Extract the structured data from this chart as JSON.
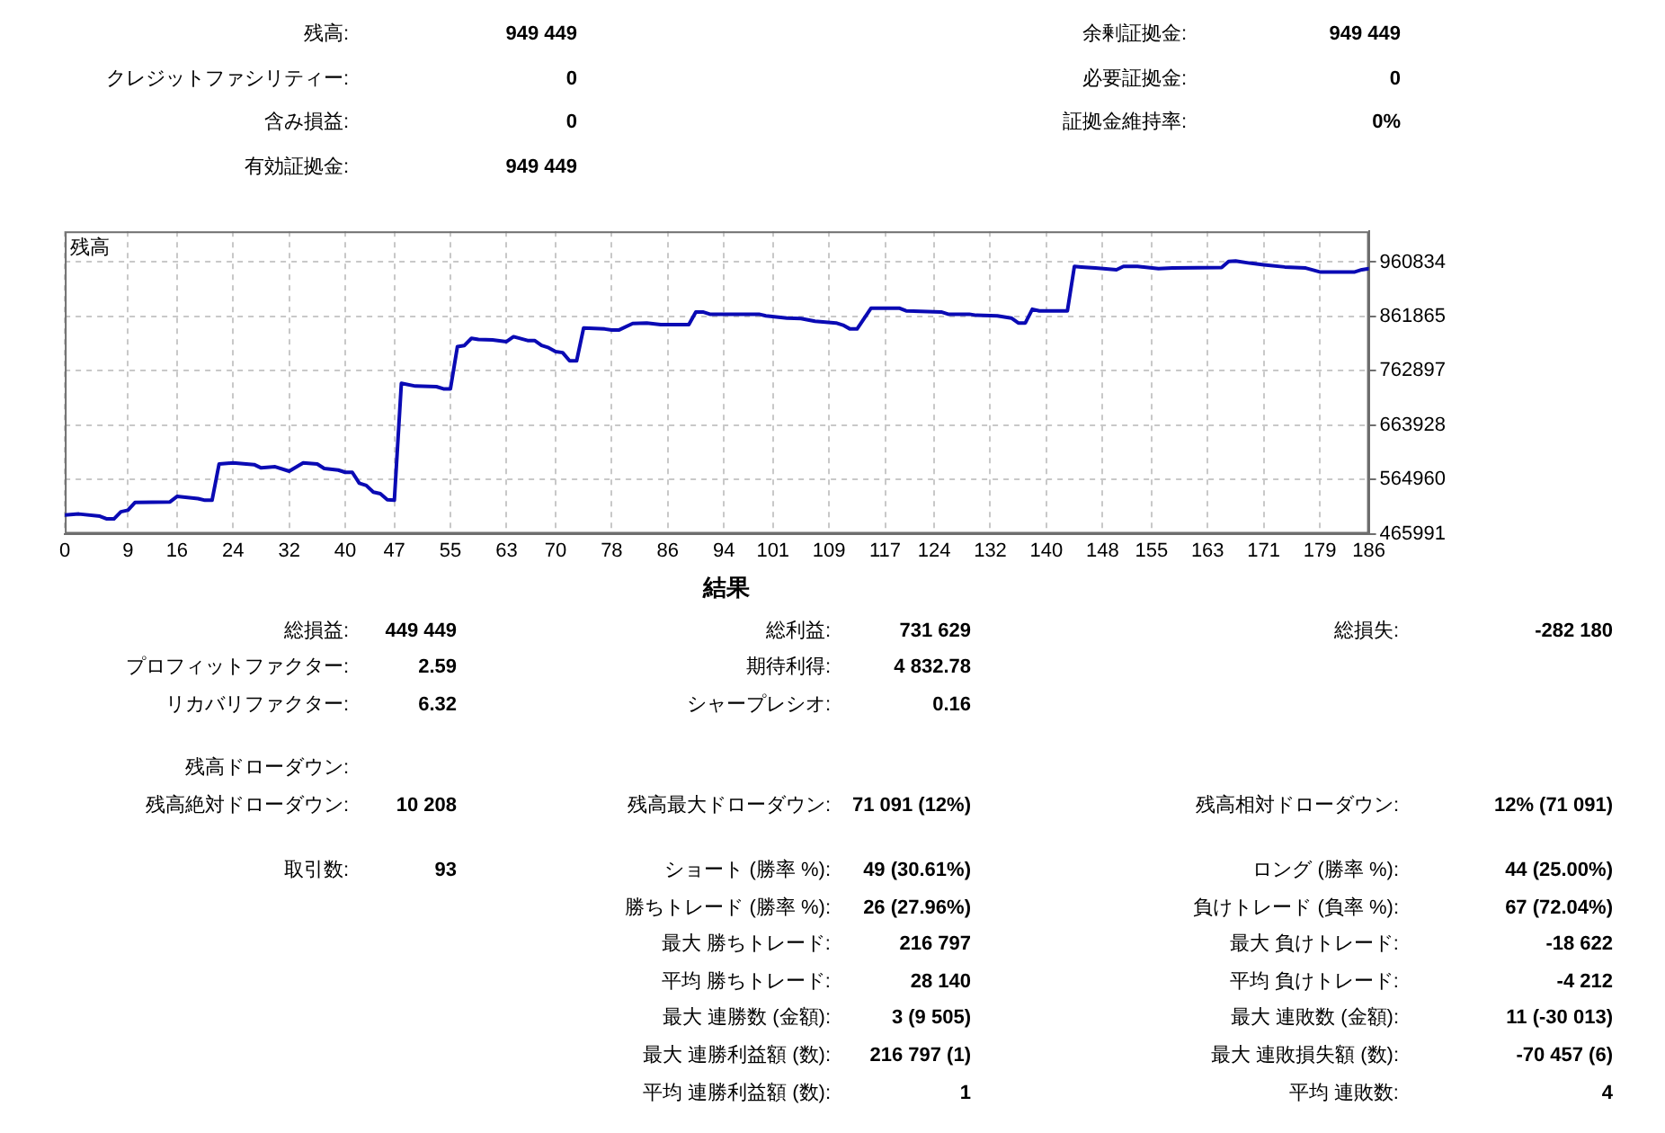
{
  "chart_data": [
    {
      "type": "other",
      "annotations": [
        "残高:",
        "949 449",
        "余剰証拠金:",
        "949 449",
        "クレジットファシリティー:",
        "0",
        "必要証拠金:",
        "0",
        "含み損益:",
        "0",
        "証拠金維持率:",
        "0%",
        "有効証拠金:",
        "949 449"
      ]
    },
    {
      "type": "line",
      "title": "残高",
      "color": "#0a0ab4",
      "x": [
        0,
        2,
        5,
        6,
        7,
        8,
        9,
        10,
        15,
        16,
        19,
        20,
        21,
        22,
        24,
        27,
        28,
        30,
        32,
        34,
        36,
        37,
        39,
        40,
        41,
        42,
        43,
        44,
        45,
        46,
        47,
        48,
        50,
        53,
        54,
        55,
        56,
        57,
        58,
        59,
        61,
        63,
        64,
        66,
        67,
        68,
        69,
        70,
        71,
        72,
        73,
        74,
        77,
        78,
        79,
        81,
        83,
        85,
        89,
        90,
        91,
        92,
        99,
        100,
        103,
        105,
        107,
        110,
        111,
        112,
        113,
        115,
        119,
        120,
        125,
        126,
        129,
        130,
        133,
        135,
        136,
        137,
        138,
        139,
        143,
        144,
        145,
        147,
        150,
        151,
        153,
        156,
        158,
        165,
        166,
        167,
        169,
        171,
        174,
        177,
        179,
        184,
        185,
        186
      ],
      "values": [
        500000,
        502000,
        498000,
        493000,
        493000,
        506000,
        509000,
        523000,
        524000,
        534000,
        530000,
        527000,
        527000,
        593000,
        595000,
        592000,
        586000,
        588000,
        580000,
        595000,
        593000,
        585000,
        582000,
        578000,
        578000,
        558000,
        554000,
        542000,
        539000,
        528000,
        527000,
        740000,
        735000,
        734000,
        730000,
        730000,
        807000,
        809000,
        822000,
        820000,
        819000,
        816000,
        825000,
        818000,
        818000,
        809000,
        805000,
        798000,
        796000,
        781000,
        781000,
        841000,
        839000,
        837000,
        837000,
        849000,
        850000,
        847000,
        847000,
        870000,
        870000,
        866000,
        866000,
        863000,
        859000,
        858000,
        853000,
        850000,
        846000,
        839000,
        839000,
        877000,
        877000,
        872000,
        870000,
        866000,
        866000,
        864000,
        863000,
        859000,
        850000,
        850000,
        875000,
        872000,
        872000,
        953000,
        952000,
        950000,
        947000,
        953000,
        953000,
        949000,
        950000,
        951000,
        962000,
        963000,
        959000,
        956000,
        952000,
        950000,
        943000,
        943000,
        947000,
        949000
      ],
      "xlim": [
        0,
        186
      ],
      "xticks": [
        0,
        9,
        16,
        24,
        32,
        40,
        47,
        55,
        63,
        70,
        78,
        86,
        94,
        101,
        109,
        117,
        124,
        132,
        140,
        148,
        155,
        163,
        171,
        179,
        186
      ],
      "ylim": [
        465991,
        1017000
      ],
      "yticks": [
        465991,
        564960,
        663928,
        762897,
        861865,
        960834
      ],
      "grid": true
    },
    {
      "type": "other",
      "title": "結果",
      "annotations": [
        "総損益:",
        "449 449",
        "総利益:",
        "731 629",
        "総損失:",
        "-282 180",
        "プロフィットファクター:",
        "2.59",
        "期待利得:",
        "4 832.78",
        "リカバリファクター:",
        "6.32",
        "シャープレシオ:",
        "0.16",
        "残高ドローダウン:",
        "残高絶対ドローダウン:",
        "10 208",
        "残高最大ドローダウン:",
        "71 091 (12%)",
        "残高相対ドローダウン:",
        "12% (71 091)",
        "取引数:",
        "93",
        "ショート (勝率 %):",
        "49 (30.61%)",
        "ロング (勝率 %):",
        "44 (25.00%)",
        "勝ちトレード (勝率 %):",
        "26 (27.96%)",
        "負けトレード (負率 %):",
        "67 (72.04%)",
        "最大 勝ちトレード:",
        "216 797",
        "最大 負けトレード:",
        "-18 622",
        "平均 勝ちトレード:",
        "28 140",
        "平均 負けトレード:",
        "-4 212",
        "最大 連勝数 (金額):",
        "3 (9 505)",
        "最大 連敗数 (金額):",
        "11 (-30 013)",
        "最大 連勝利益額 (数):",
        "216 797 (1)",
        "最大 連敗損失額 (数):",
        "-70 457 (6)",
        "平均 連勝利益額 (数):",
        "1",
        "平均 連敗数:",
        "4"
      ]
    }
  ]
}
